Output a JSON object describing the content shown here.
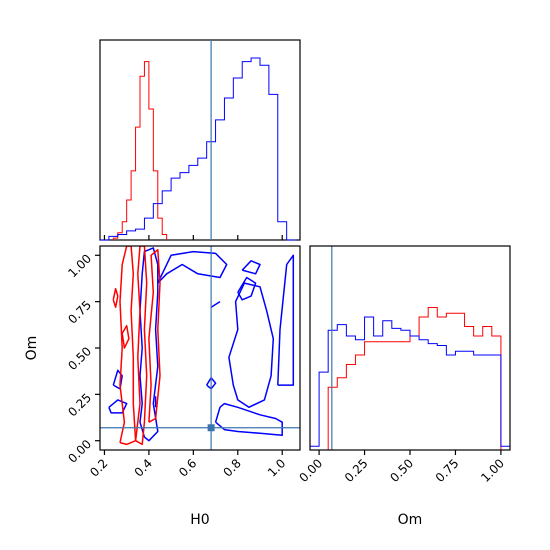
{
  "chart_data": {
    "type": "corner",
    "parameters": [
      "H0",
      "Om"
    ],
    "truth": {
      "H0": 0.68,
      "Om": 0.07,
      "color": "#3b75af"
    },
    "series_colors": {
      "red": "#ff0000",
      "blue": "#0000ff"
    },
    "h0_ticks": [
      "0.2",
      "0.4",
      "0.6",
      "0.8",
      "1.0"
    ],
    "om_ticks": [
      "0.00",
      "0.25",
      "0.50",
      "0.75",
      "1.00"
    ],
    "h0_range": [
      0.18,
      1.08
    ],
    "om_range": [
      -0.05,
      1.05
    ],
    "xlabel_left": "H0",
    "xlabel_right": "Om",
    "ylabel": "Om",
    "hist_h0": {
      "edges": [
        0.24,
        0.26,
        0.28,
        0.3,
        0.32,
        0.34,
        0.36,
        0.38,
        0.4,
        0.42,
        0.44,
        0.46,
        0.48
      ],
      "red": [
        1,
        4,
        10,
        22,
        38,
        62,
        90,
        98,
        72,
        38,
        12,
        3
      ],
      "blue_edges": [
        0.18,
        0.22,
        0.26,
        0.3,
        0.34,
        0.38,
        0.42,
        0.46,
        0.5,
        0.54,
        0.58,
        0.62,
        0.66,
        0.7,
        0.74,
        0.78,
        0.82,
        0.86,
        0.9,
        0.94,
        0.98,
        1.02,
        1.06
      ],
      "blue": [
        0,
        2,
        3,
        5,
        6,
        12,
        20,
        27,
        34,
        37,
        41,
        45,
        54,
        66,
        78,
        89,
        98,
        100,
        96,
        80,
        10,
        0
      ]
    },
    "hist_om": {
      "edges": [
        -0.05,
        0.0,
        0.05,
        0.1,
        0.15,
        0.2,
        0.25,
        0.3,
        0.35,
        0.4,
        0.45,
        0.5,
        0.55,
        0.6,
        0.65,
        0.7,
        0.75,
        0.8,
        0.85,
        0.9,
        0.95,
        1.0,
        1.05
      ],
      "red": [
        0,
        0,
        33,
        38,
        45,
        50,
        57,
        57,
        57,
        57,
        57,
        60,
        70,
        75,
        70,
        72,
        72,
        65,
        60,
        65,
        60,
        0
      ],
      "blue": [
        2,
        41,
        63,
        66,
        60,
        58,
        70,
        60,
        68,
        64,
        63,
        60,
        58,
        56,
        55,
        50,
        52,
        52,
        50,
        50,
        50,
        2
      ]
    },
    "contours_red": [
      [
        [
          0.27,
          -0.01
        ],
        [
          0.29,
          0.1
        ],
        [
          0.27,
          0.3
        ],
        [
          0.28,
          0.5
        ],
        [
          0.27,
          0.75
        ],
        [
          0.28,
          0.95
        ],
        [
          0.3,
          1.05
        ],
        [
          0.32,
          1.05
        ],
        [
          0.33,
          0.9
        ],
        [
          0.32,
          0.7
        ],
        [
          0.33,
          0.45
        ],
        [
          0.33,
          0.2
        ],
        [
          0.34,
          0.0
        ],
        [
          0.3,
          -0.02
        ],
        [
          0.27,
          -0.01
        ]
      ],
      [
        [
          0.34,
          0.0
        ],
        [
          0.36,
          0.2
        ],
        [
          0.35,
          0.45
        ],
        [
          0.36,
          0.7
        ],
        [
          0.35,
          0.9
        ],
        [
          0.36,
          1.05
        ],
        [
          0.38,
          1.05
        ],
        [
          0.39,
          0.85
        ],
        [
          0.38,
          0.6
        ],
        [
          0.39,
          0.35
        ],
        [
          0.38,
          0.1
        ],
        [
          0.37,
          -0.02
        ],
        [
          0.34,
          0.0
        ]
      ],
      [
        [
          0.4,
          0.1
        ],
        [
          0.41,
          0.3
        ],
        [
          0.4,
          0.55
        ],
        [
          0.42,
          0.8
        ],
        [
          0.41,
          1.0
        ],
        [
          0.44,
          1.03
        ],
        [
          0.45,
          0.85
        ],
        [
          0.44,
          0.6
        ],
        [
          0.45,
          0.35
        ],
        [
          0.43,
          0.12
        ],
        [
          0.4,
          0.1
        ]
      ],
      [
        [
          0.24,
          0.76
        ],
        [
          0.25,
          0.82
        ],
        [
          0.26,
          0.78
        ],
        [
          0.25,
          0.72
        ],
        [
          0.24,
          0.76
        ]
      ],
      [
        [
          0.28,
          0.58
        ],
        [
          0.3,
          0.62
        ],
        [
          0.31,
          0.55
        ],
        [
          0.29,
          0.5
        ],
        [
          0.28,
          0.58
        ]
      ]
    ],
    "contours_blue": [
      [
        [
          0.38,
          0.02
        ],
        [
          0.36,
          0.1
        ],
        [
          0.37,
          0.2
        ],
        [
          0.36,
          0.35
        ],
        [
          0.37,
          0.5
        ],
        [
          0.36,
          0.7
        ],
        [
          0.37,
          0.9
        ],
        [
          0.38,
          1.02
        ],
        [
          0.42,
          1.04
        ],
        [
          0.44,
          0.95
        ],
        [
          0.44,
          0.8
        ],
        [
          0.43,
          0.6
        ],
        [
          0.44,
          0.4
        ],
        [
          0.42,
          0.2
        ],
        [
          0.44,
          0.05
        ],
        [
          0.4,
          0.0
        ],
        [
          0.38,
          0.02
        ]
      ],
      [
        [
          0.44,
          0.85
        ],
        [
          0.5,
          1.0
        ],
        [
          0.6,
          1.02
        ],
        [
          0.7,
          1.01
        ],
        [
          0.75,
          0.95
        ],
        [
          0.72,
          0.88
        ],
        [
          0.62,
          0.9
        ],
        [
          0.55,
          0.95
        ],
        [
          0.48,
          0.9
        ],
        [
          0.44,
          0.85
        ]
      ],
      [
        [
          0.24,
          0.3
        ],
        [
          0.26,
          0.38
        ],
        [
          0.28,
          0.35
        ],
        [
          0.27,
          0.28
        ],
        [
          0.24,
          0.3
        ]
      ],
      [
        [
          0.22,
          0.18
        ],
        [
          0.26,
          0.22
        ],
        [
          0.3,
          0.2
        ],
        [
          0.28,
          0.15
        ],
        [
          0.23,
          0.15
        ],
        [
          0.22,
          0.18
        ]
      ],
      [
        [
          0.43,
          0.18
        ],
        [
          0.43,
          0.24
        ]
      ],
      [
        [
          0.78,
          0.3
        ],
        [
          0.76,
          0.45
        ],
        [
          0.8,
          0.6
        ],
        [
          0.79,
          0.75
        ],
        [
          0.83,
          0.85
        ],
        [
          0.9,
          0.83
        ],
        [
          0.93,
          0.7
        ],
        [
          0.96,
          0.55
        ],
        [
          0.95,
          0.35
        ],
        [
          0.92,
          0.22
        ],
        [
          0.85,
          0.18
        ],
        [
          0.8,
          0.22
        ],
        [
          0.78,
          0.3
        ]
      ],
      [
        [
          0.7,
          0.1
        ],
        [
          0.72,
          0.18
        ],
        [
          0.74,
          0.2
        ],
        [
          0.8,
          0.18
        ],
        [
          0.9,
          0.14
        ],
        [
          0.97,
          0.12
        ],
        [
          1.0,
          0.1
        ],
        [
          1.0,
          0.03
        ],
        [
          0.9,
          0.04
        ],
        [
          0.8,
          0.05
        ],
        [
          0.74,
          0.06
        ],
        [
          0.7,
          0.1
        ]
      ],
      [
        [
          0.8,
          0.8
        ],
        [
          0.84,
          0.88
        ],
        [
          0.88,
          0.85
        ],
        [
          0.86,
          0.78
        ],
        [
          0.82,
          0.76
        ],
        [
          0.8,
          0.8
        ]
      ],
      [
        [
          0.82,
          0.92
        ],
        [
          0.86,
          0.97
        ],
        [
          0.9,
          0.95
        ],
        [
          0.88,
          0.9
        ],
        [
          0.82,
          0.92
        ]
      ],
      [
        [
          0.68,
          0.72
        ],
        [
          0.72,
          0.75
        ]
      ],
      [
        [
          0.66,
          0.3
        ],
        [
          0.68,
          0.34
        ],
        [
          0.7,
          0.31
        ],
        [
          0.68,
          0.28
        ],
        [
          0.66,
          0.3
        ]
      ],
      [
        [
          0.98,
          0.3
        ],
        [
          0.99,
          0.6
        ],
        [
          1.02,
          0.95
        ],
        [
          1.05,
          1.0
        ],
        [
          1.05,
          0.3
        ],
        [
          0.98,
          0.3
        ]
      ]
    ]
  }
}
